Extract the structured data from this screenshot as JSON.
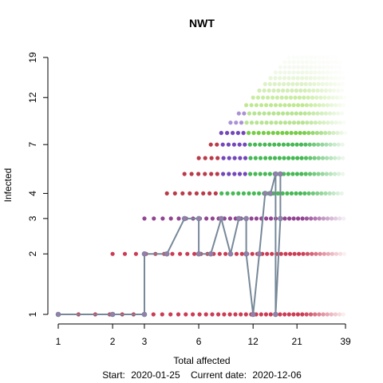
{
  "chart_data": {
    "type": "scatter",
    "title": "NWT",
    "xlabel": "Total affected",
    "ylabel": "Infected",
    "footer": {
      "start_label": "Start:",
      "start_date": "2020-01-25",
      "current_label": "Current date:",
      "current_date": "2020-12-06"
    },
    "x_scale": "log",
    "y_scale": "log",
    "x_ticks": [
      1,
      2,
      3,
      6,
      12,
      21,
      39
    ],
    "y_ticks": [
      1,
      2,
      3,
      4,
      7,
      12,
      19
    ],
    "xlim": [
      1,
      39
    ],
    "ylim": [
      1,
      19
    ],
    "grid": false,
    "trajectory": {
      "color": "#778899",
      "points": [
        [
          1,
          1
        ],
        [
          2,
          1
        ],
        [
          3,
          1
        ],
        [
          3,
          2
        ],
        [
          4,
          2
        ],
        [
          5,
          3
        ],
        [
          6,
          3
        ],
        [
          6,
          2
        ],
        [
          7,
          2
        ],
        [
          8,
          3
        ],
        [
          9,
          2
        ],
        [
          10,
          3
        ],
        [
          11,
          3
        ],
        [
          11,
          2
        ],
        [
          12,
          1
        ],
        [
          13,
          2
        ],
        [
          14,
          4
        ],
        [
          15,
          4
        ],
        [
          16,
          5
        ],
        [
          16,
          1
        ],
        [
          17,
          3
        ],
        [
          17,
          5
        ]
      ]
    },
    "background_points": {
      "description_colors": [
        "#8b3a8b",
        "#c8324b",
        "#3cb44b",
        "#6a3db5",
        "#8c8c30"
      ]
    }
  }
}
